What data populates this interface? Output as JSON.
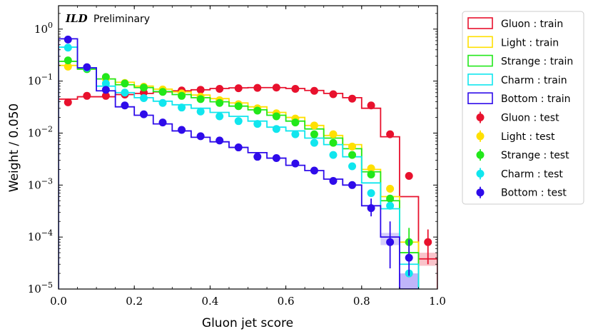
{
  "chart_data": {
    "type": "histogram-step",
    "title": "",
    "annotation": {
      "bold": "ILD",
      "text": "Preliminary"
    },
    "xlabel": "Gluon jet score",
    "ylabel": "Weight / 0.050",
    "xlim": [
      0.0,
      1.0
    ],
    "ylim_log10": [
      -5,
      0.45
    ],
    "yscale": "log",
    "bin_width": 0.05,
    "bin_edges": [
      0.0,
      0.05,
      0.1,
      0.15,
      0.2,
      0.25,
      0.3,
      0.35,
      0.4,
      0.45,
      0.5,
      0.55,
      0.6,
      0.65,
      0.7,
      0.75,
      0.8,
      0.85,
      0.9,
      0.95,
      1.0
    ],
    "x_ticks": [
      {
        "value": 0.0,
        "label": "0.0"
      },
      {
        "value": 0.2,
        "label": "0.2"
      },
      {
        "value": 0.4,
        "label": "0.4"
      },
      {
        "value": 0.6,
        "label": "0.6"
      },
      {
        "value": 0.8,
        "label": "0.8"
      },
      {
        "value": 1.0,
        "label": "1.0"
      }
    ],
    "y_ticks": [
      {
        "exp": 0,
        "label": "10",
        "sup": "0"
      },
      {
        "exp": -1,
        "label": "10",
        "sup": "−1"
      },
      {
        "exp": -2,
        "label": "10",
        "sup": "−2"
      },
      {
        "exp": -3,
        "label": "10",
        "sup": "−3"
      },
      {
        "exp": -4,
        "label": "10",
        "sup": "−4"
      },
      {
        "exp": -5,
        "label": "10",
        "sup": "−5"
      }
    ],
    "series": [
      {
        "name": "Gluon",
        "color": "#e8112d",
        "train_label": "Gluon : train",
        "test_label": "Gluon : test",
        "train": [
          0.045,
          0.05,
          0.05,
          0.055,
          0.058,
          0.062,
          0.065,
          0.068,
          0.072,
          0.074,
          0.075,
          0.075,
          0.072,
          0.066,
          0.058,
          0.048,
          0.03,
          0.0085,
          0.0006,
          3.8e-05
        ],
        "test": [
          0.039,
          0.052,
          0.052,
          0.055,
          0.06,
          0.063,
          0.066,
          0.068,
          0.071,
          0.073,
          0.074,
          0.075,
          0.071,
          0.065,
          0.056,
          0.046,
          0.034,
          0.0095,
          0.0015,
          8e-05
        ],
        "test_err_log": [
          null,
          null,
          null,
          null,
          null,
          null,
          null,
          null,
          null,
          null,
          null,
          null,
          null,
          null,
          null,
          null,
          null,
          null,
          null,
          [
            3e-05,
            0.00014
          ]
        ]
      },
      {
        "name": "Light",
        "color": "#ffe000",
        "train_label": "Light : train",
        "test_label": "Light : test",
        "train": [
          0.2,
          0.17,
          0.11,
          0.095,
          0.08,
          0.07,
          0.062,
          0.054,
          0.046,
          0.038,
          0.032,
          0.025,
          0.02,
          0.014,
          0.009,
          0.006,
          0.002,
          0.0006,
          8e-05,
          null
        ],
        "test": [
          0.19,
          0.18,
          0.11,
          0.092,
          0.078,
          0.069,
          0.058,
          0.05,
          0.043,
          0.036,
          0.03,
          0.024,
          0.019,
          0.014,
          0.0095,
          0.0055,
          0.0021,
          0.00085,
          8e-05,
          null
        ],
        "test_err_log": [
          null,
          null,
          null,
          null,
          null,
          null,
          null,
          null,
          null,
          null,
          null,
          null,
          null,
          null,
          null,
          null,
          null,
          null,
          null,
          null
        ]
      },
      {
        "name": "Strange",
        "color": "#22e81a",
        "train_label": "Strange : train",
        "test_label": "Strange : test",
        "train": [
          0.24,
          0.17,
          0.11,
          0.085,
          0.075,
          0.063,
          0.055,
          0.048,
          0.04,
          0.033,
          0.028,
          0.022,
          0.017,
          0.012,
          0.008,
          0.005,
          0.0018,
          0.0005,
          5e-05,
          null
        ],
        "test": [
          0.25,
          0.17,
          0.12,
          0.09,
          0.075,
          0.062,
          0.052,
          0.045,
          0.038,
          0.033,
          0.027,
          0.021,
          0.016,
          0.0095,
          0.0065,
          0.0038,
          0.0016,
          0.00055,
          8e-05,
          null
        ],
        "test_err_log": [
          null,
          null,
          null,
          null,
          null,
          null,
          null,
          null,
          null,
          null,
          null,
          null,
          null,
          null,
          null,
          null,
          null,
          null,
          [
            4e-05,
            0.00015
          ],
          null
        ]
      },
      {
        "name": "Charm",
        "color": "#10e6ee",
        "train_label": "Charm : train",
        "test_label": "Charm : test",
        "train": [
          0.45,
          0.18,
          0.08,
          0.06,
          0.048,
          0.041,
          0.035,
          0.03,
          0.025,
          0.021,
          0.017,
          0.013,
          0.011,
          0.008,
          0.006,
          0.0035,
          0.0011,
          0.00035,
          3e-05,
          null
        ],
        "test": [
          0.44,
          0.18,
          0.09,
          0.06,
          0.047,
          0.038,
          0.031,
          0.026,
          0.021,
          0.017,
          0.015,
          0.012,
          0.0095,
          0.0065,
          0.0038,
          0.0023,
          0.0007,
          0.0004,
          2e-05,
          null
        ],
        "test_err_log": [
          null,
          null,
          null,
          null,
          null,
          null,
          null,
          null,
          null,
          null,
          null,
          null,
          null,
          null,
          null,
          null,
          null,
          null,
          null,
          null
        ]
      },
      {
        "name": "Bottom",
        "color": "#2e0bea",
        "train_label": "Bottom : train",
        "test_label": "Bottom : test",
        "train": [
          0.65,
          0.18,
          0.065,
          0.032,
          0.022,
          0.015,
          0.011,
          0.0083,
          0.0068,
          0.0053,
          0.0042,
          0.0033,
          0.0024,
          0.0019,
          0.0013,
          0.001,
          0.0004,
          0.0001,
          1e-05,
          null
        ],
        "test": [
          0.63,
          0.185,
          0.068,
          0.034,
          0.023,
          0.016,
          0.0115,
          0.0087,
          0.0072,
          0.0053,
          0.0035,
          0.0033,
          0.0026,
          0.0019,
          0.0012,
          0.001,
          0.00036,
          8e-05,
          4e-05,
          null
        ],
        "test_err_log": [
          null,
          null,
          null,
          null,
          null,
          null,
          null,
          null,
          null,
          null,
          null,
          null,
          null,
          null,
          null,
          null,
          [
            0.00025,
            0.00055
          ],
          [
            2.5e-05,
            0.0002
          ],
          [
            1.8e-05,
            9e-05
          ],
          null
        ]
      }
    ],
    "legend": {
      "position": "outside-right"
    }
  }
}
